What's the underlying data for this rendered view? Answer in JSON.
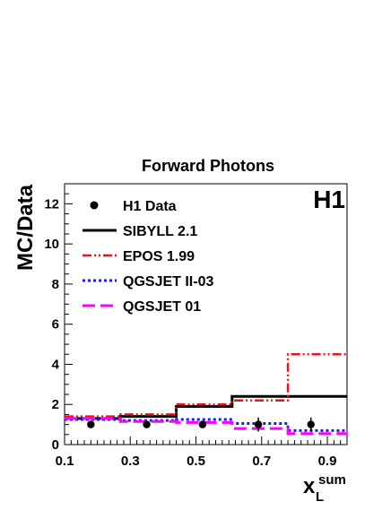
{
  "chart_data": {
    "type": "step",
    "title": "Forward Photons",
    "ylabel": "MC/Data",
    "xlabel_main": "x",
    "xlabel_sub": "L",
    "xlabel_sup": "sum",
    "experiment_label": "H1",
    "xlim": [
      0.1,
      0.96
    ],
    "ylim": [
      0,
      13
    ],
    "x_ticks": [
      0.1,
      0.3,
      0.5,
      0.7,
      0.9
    ],
    "x_tick_labels": [
      "0.1",
      "0.3",
      "0.5",
      "0.7",
      "0.9"
    ],
    "y_ticks": [
      0,
      2,
      4,
      6,
      8,
      10,
      12
    ],
    "y_tick_labels": [
      "0",
      "2",
      "4",
      "6",
      "8",
      "10",
      "12"
    ],
    "bin_edges": [
      0.1,
      0.27,
      0.44,
      0.61,
      0.78,
      0.96
    ],
    "legend_placement": "top-left",
    "data_points": {
      "name": "H1 Data",
      "x": [
        0.18,
        0.35,
        0.52,
        0.69,
        0.85
      ],
      "y": [
        1.0,
        1.0,
        1.0,
        1.0,
        1.0
      ],
      "yerr": [
        0.1,
        0.1,
        0.1,
        0.35,
        0.35
      ]
    },
    "series": [
      {
        "name": "SIBYLL 2.1",
        "values": [
          1.3,
          1.4,
          1.9,
          2.4,
          2.4
        ],
        "color": "#000000",
        "style": "solid"
      },
      {
        "name": "EPOS 1.99",
        "values": [
          1.4,
          1.5,
          2.0,
          2.2,
          4.5
        ],
        "color": "#e8141a",
        "style": "dashdotdot"
      },
      {
        "name": "QGSJET II-03",
        "values": [
          1.25,
          1.2,
          1.25,
          1.05,
          0.7
        ],
        "color": "#1a1aff",
        "style": "dotted"
      },
      {
        "name": "QGSJET 01",
        "values": [
          1.3,
          1.15,
          1.1,
          0.8,
          0.55
        ],
        "color": "#ff00ff",
        "style": "dashed"
      }
    ]
  }
}
